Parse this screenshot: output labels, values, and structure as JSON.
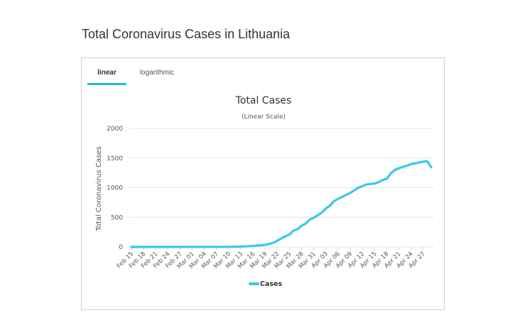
{
  "page": {
    "title": "Total Coronavirus Cases in Lithuania"
  },
  "tabs": [
    {
      "label": "linear",
      "active": true
    },
    {
      "label": "logarithmic",
      "active": false
    }
  ],
  "colors": {
    "series": "#38c8ec",
    "tab_accent": "#1fb8e8"
  },
  "chart_data": {
    "type": "line",
    "title": "Total Cases",
    "subtitle": "(Linear Scale)",
    "xlabel": "",
    "ylabel": "Total Coronavirus Cases",
    "ylim": [
      0,
      2000
    ],
    "yticks": [
      0,
      500,
      1000,
      1500,
      2000
    ],
    "grid": true,
    "legend_position": "bottom-center",
    "x_tick_labels": [
      "Feb 15",
      "Feb 18",
      "Feb 21",
      "Feb 24",
      "Feb 27",
      "Mar 01",
      "Mar 04",
      "Mar 07",
      "Mar 10",
      "Mar 13",
      "Mar 16",
      "Mar 19",
      "Mar 22",
      "Mar 25",
      "Mar 28",
      "Mar 31",
      "Apr 03",
      "Apr 06",
      "Apr 09",
      "Apr 12",
      "Apr 15",
      "Apr 18",
      "Apr 21",
      "Apr 24",
      "Apr 27"
    ],
    "series": [
      {
        "name": "Cases",
        "color": "#38c8ec",
        "x": [
          "Feb 15",
          "Feb 16",
          "Feb 17",
          "Feb 18",
          "Feb 19",
          "Feb 20",
          "Feb 21",
          "Feb 22",
          "Feb 23",
          "Feb 24",
          "Feb 25",
          "Feb 26",
          "Feb 27",
          "Feb 28",
          "Feb 29",
          "Mar 01",
          "Mar 02",
          "Mar 03",
          "Mar 04",
          "Mar 05",
          "Mar 06",
          "Mar 07",
          "Mar 08",
          "Mar 09",
          "Mar 10",
          "Mar 11",
          "Mar 12",
          "Mar 13",
          "Mar 14",
          "Mar 15",
          "Mar 16",
          "Mar 17",
          "Mar 18",
          "Mar 19",
          "Mar 20",
          "Mar 21",
          "Mar 22",
          "Mar 23",
          "Mar 24",
          "Mar 25",
          "Mar 26",
          "Mar 27",
          "Mar 28",
          "Mar 29",
          "Mar 30",
          "Mar 31",
          "Apr 01",
          "Apr 02",
          "Apr 03",
          "Apr 04",
          "Apr 05",
          "Apr 06",
          "Apr 07",
          "Apr 08",
          "Apr 09",
          "Apr 10",
          "Apr 11",
          "Apr 12",
          "Apr 13",
          "Apr 14",
          "Apr 15",
          "Apr 16",
          "Apr 17",
          "Apr 18",
          "Apr 19",
          "Apr 20",
          "Apr 21",
          "Apr 22",
          "Apr 23",
          "Apr 24",
          "Apr 25",
          "Apr 26",
          "Apr 27",
          "Apr 28",
          "Apr 29"
        ],
        "values": [
          0,
          0,
          0,
          0,
          0,
          0,
          0,
          0,
          0,
          0,
          0,
          0,
          0,
          1,
          1,
          1,
          1,
          1,
          1,
          1,
          1,
          1,
          1,
          1,
          1,
          3,
          3,
          6,
          8,
          12,
          17,
          25,
          27,
          36,
          49,
          69,
          105,
          143,
          179,
          209,
          274,
          299,
          358,
          394,
          460,
          491,
          533,
          581,
          649,
          696,
          771,
          811,
          843,
          880,
          912,
          955,
          999,
          1026,
          1053,
          1062,
          1070,
          1091,
          1128,
          1149,
          1239,
          1298,
          1326,
          1350,
          1370,
          1398,
          1410,
          1426,
          1438,
          1449,
          1344
        ]
      }
    ]
  }
}
